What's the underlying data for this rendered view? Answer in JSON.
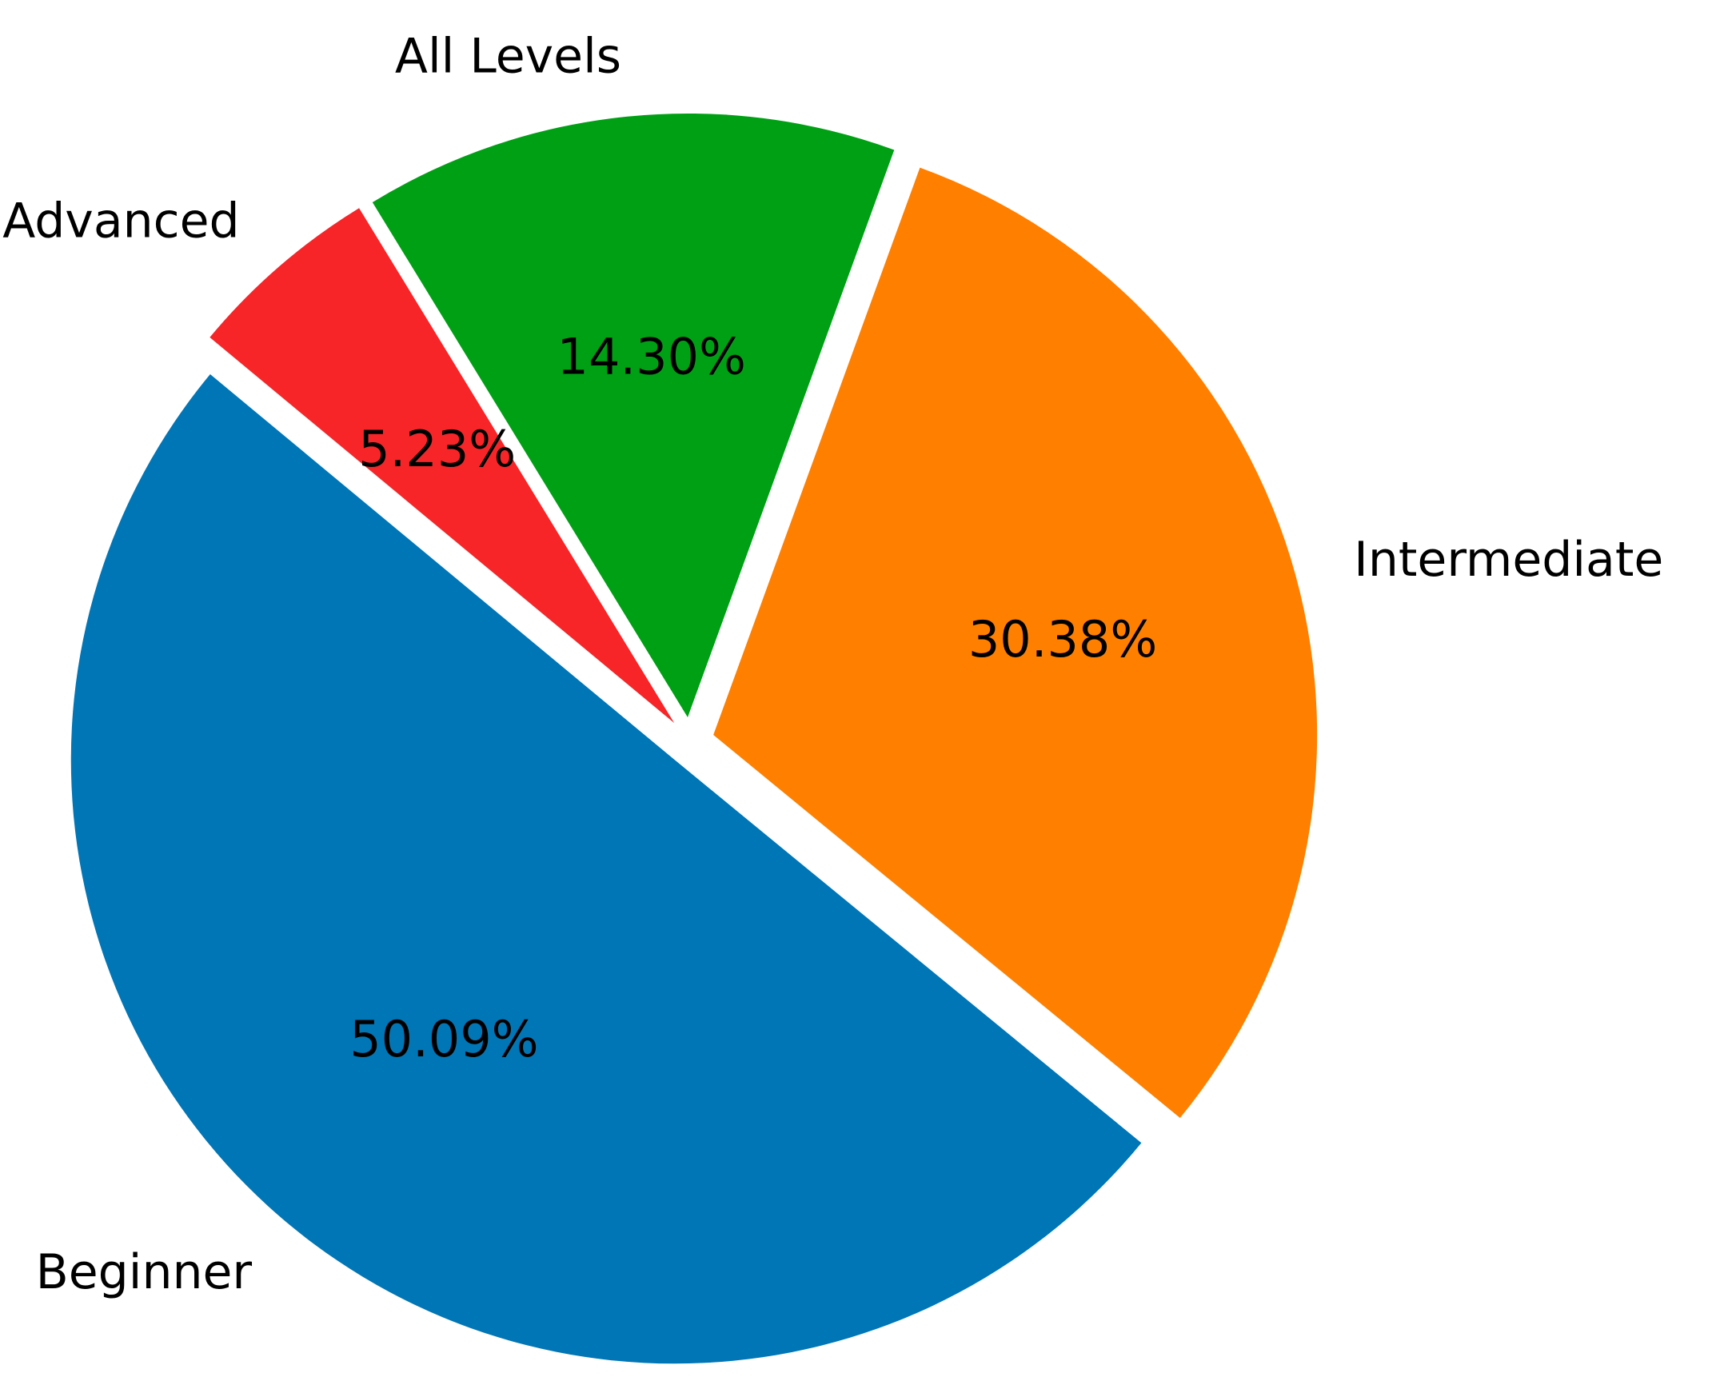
{
  "chart_data": {
    "type": "pie",
    "title": "",
    "slices": [
      {
        "label": "Beginner",
        "value": 50.09,
        "pct_label": "50.09%",
        "color": "#0076B6",
        "exploded": true
      },
      {
        "label": "Intermediate",
        "value": 30.38,
        "pct_label": "30.38%",
        "color": "#FF7F00",
        "exploded": true
      },
      {
        "label": "All Levels",
        "value": 14.3,
        "pct_label": "14.30%",
        "color": "#00A014",
        "exploded": true
      },
      {
        "label": "Advanced",
        "value": 5.23,
        "pct_label": "5.23%",
        "color": "#F72527",
        "exploded": true
      }
    ],
    "legend": "none",
    "direction": "counterclockwise"
  }
}
